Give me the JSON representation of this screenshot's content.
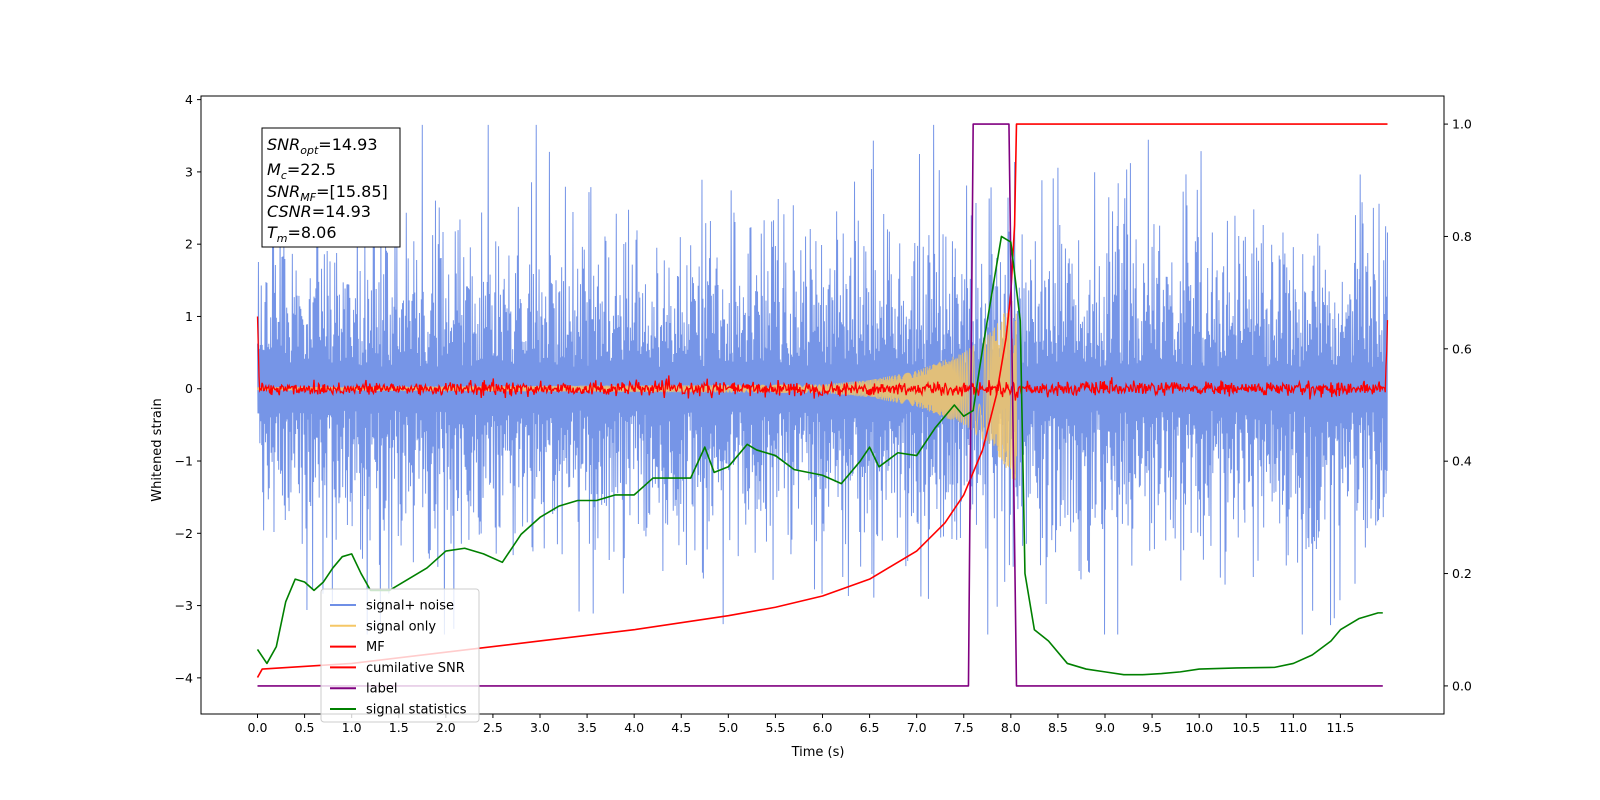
{
  "chart_data": {
    "type": "line",
    "title": "",
    "xlabel": "Time (s)",
    "ylabel": "Whitened strain",
    "xlim": [
      -0.6,
      12.6
    ],
    "ylim_left": [
      -4.5,
      4.05
    ],
    "ylim_right": [
      -0.05,
      1.05
    ],
    "x_ticks": [
      0.0,
      0.5,
      1.0,
      1.5,
      2.0,
      2.5,
      3.0,
      3.5,
      4.0,
      4.5,
      5.0,
      5.5,
      6.0,
      6.5,
      7.0,
      7.5,
      8.0,
      8.5,
      9.0,
      9.5,
      10.0,
      10.5,
      11.0,
      11.5
    ],
    "x_tick_labels": [
      "0.0",
      "0.5",
      "1.0",
      "1.5",
      "2.0",
      "2.5",
      "3.0",
      "3.5",
      "4.0",
      "4.5",
      "5.0",
      "5.5",
      "6.0",
      "6.5",
      "7.0",
      "7.5",
      "8.0",
      "8.5",
      "9.0",
      "9.5",
      "10.0",
      "10.5",
      "11.0",
      "11.5"
    ],
    "y_left_ticks": [
      4,
      3,
      2,
      1,
      0,
      -1,
      -2,
      -3,
      -4
    ],
    "y_left_tick_labels": [
      "4",
      "3",
      "2",
      "1",
      "0",
      "−1",
      "−2",
      "−3",
      "−4"
    ],
    "y_right_ticks": [
      1.0,
      0.8,
      0.6,
      0.4,
      0.2,
      0.0
    ],
    "y_right_tick_labels": [
      "1.0",
      "0.8",
      "0.6",
      "0.4",
      "0.2",
      "0.0"
    ],
    "grid": false,
    "legend_position": "bottom-left",
    "info_box": {
      "snr_opt": "=14.93",
      "mc": "=22.5",
      "snr_mf": "=[15.85]",
      "csnr": "=14.93",
      "tm": "=8.06"
    },
    "series": [
      {
        "name": "signal+ noise",
        "axis": "left",
        "color": "#6f8fe6",
        "style": "noise",
        "description_values": {
          "x_start": 0.0,
          "x_end": 12.0,
          "amplitude_approx": 2.4,
          "peak_max": 3.65,
          "peak_min": -3.4
        }
      },
      {
        "name": "signal only",
        "axis": "left",
        "color": "#f5c766",
        "style": "chirp",
        "envelope": {
          "x": [
            0.0,
            6.0,
            6.5,
            7.0,
            7.5,
            7.8,
            8.0,
            8.06
          ],
          "amp": [
            0.02,
            0.06,
            0.12,
            0.25,
            0.5,
            0.8,
            1.2,
            1.4
          ]
        }
      },
      {
        "name": "MF",
        "axis": "left",
        "color": "#ff0000",
        "style": "mf",
        "edges": {
          "start_value": 1.0,
          "end_value": 0.95,
          "noise_amp": 0.08
        }
      },
      {
        "name": "cumilative SNR",
        "axis": "right",
        "color": "#ff0000",
        "style": "line",
        "x": [
          0.0,
          0.05,
          1.0,
          2.0,
          3.0,
          4.0,
          5.0,
          5.5,
          6.0,
          6.5,
          7.0,
          7.3,
          7.5,
          7.7,
          7.85,
          7.95,
          8.0,
          8.04,
          8.06,
          8.5,
          9.0,
          10.0,
          11.0,
          11.5,
          12.0
        ],
        "y": [
          0.015,
          0.03,
          0.04,
          0.06,
          0.08,
          0.1,
          0.125,
          0.14,
          0.16,
          0.19,
          0.24,
          0.29,
          0.34,
          0.42,
          0.52,
          0.62,
          0.7,
          0.82,
          1.0,
          1.0,
          1.0,
          1.0,
          1.0,
          1.0,
          1.0
        ]
      },
      {
        "name": "label",
        "axis": "right",
        "color": "#800080",
        "style": "line",
        "x": [
          0.0,
          7.55,
          7.6,
          7.98,
          8.06,
          11.95
        ],
        "y": [
          0.0,
          0.0,
          1.0,
          1.0,
          0.0,
          0.0
        ]
      },
      {
        "name": "signal statistics",
        "axis": "right",
        "color": "#008000",
        "style": "line",
        "x": [
          0.0,
          0.1,
          0.2,
          0.3,
          0.4,
          0.5,
          0.6,
          0.7,
          0.8,
          0.9,
          1.0,
          1.1,
          1.2,
          1.3,
          1.4,
          1.6,
          1.8,
          2.0,
          2.2,
          2.4,
          2.6,
          2.7,
          2.8,
          3.0,
          3.2,
          3.4,
          3.6,
          3.8,
          4.0,
          4.2,
          4.4,
          4.6,
          4.75,
          4.85,
          5.0,
          5.2,
          5.3,
          5.5,
          5.7,
          6.0,
          6.2,
          6.4,
          6.5,
          6.6,
          6.8,
          7.0,
          7.2,
          7.4,
          7.5,
          7.6,
          7.7,
          7.8,
          7.9,
          8.0,
          8.1,
          8.15,
          8.25,
          8.4,
          8.6,
          8.8,
          9.0,
          9.2,
          9.4,
          9.6,
          9.8,
          10.0,
          10.4,
          10.8,
          11.0,
          11.2,
          11.4,
          11.5,
          11.7,
          11.9,
          11.95
        ],
        "y": [
          0.065,
          0.04,
          0.07,
          0.15,
          0.19,
          0.185,
          0.17,
          0.185,
          0.21,
          0.23,
          0.235,
          0.2,
          0.17,
          0.17,
          0.17,
          0.19,
          0.21,
          0.24,
          0.245,
          0.235,
          0.22,
          0.245,
          0.27,
          0.3,
          0.32,
          0.33,
          0.33,
          0.34,
          0.34,
          0.37,
          0.37,
          0.37,
          0.425,
          0.38,
          0.39,
          0.43,
          0.42,
          0.41,
          0.385,
          0.375,
          0.36,
          0.4,
          0.425,
          0.39,
          0.415,
          0.41,
          0.46,
          0.5,
          0.48,
          0.49,
          0.6,
          0.7,
          0.8,
          0.79,
          0.65,
          0.2,
          0.1,
          0.08,
          0.04,
          0.03,
          0.025,
          0.02,
          0.02,
          0.022,
          0.025,
          0.03,
          0.032,
          0.033,
          0.04,
          0.055,
          0.08,
          0.1,
          0.12,
          0.13,
          0.13
        ]
      }
    ]
  }
}
